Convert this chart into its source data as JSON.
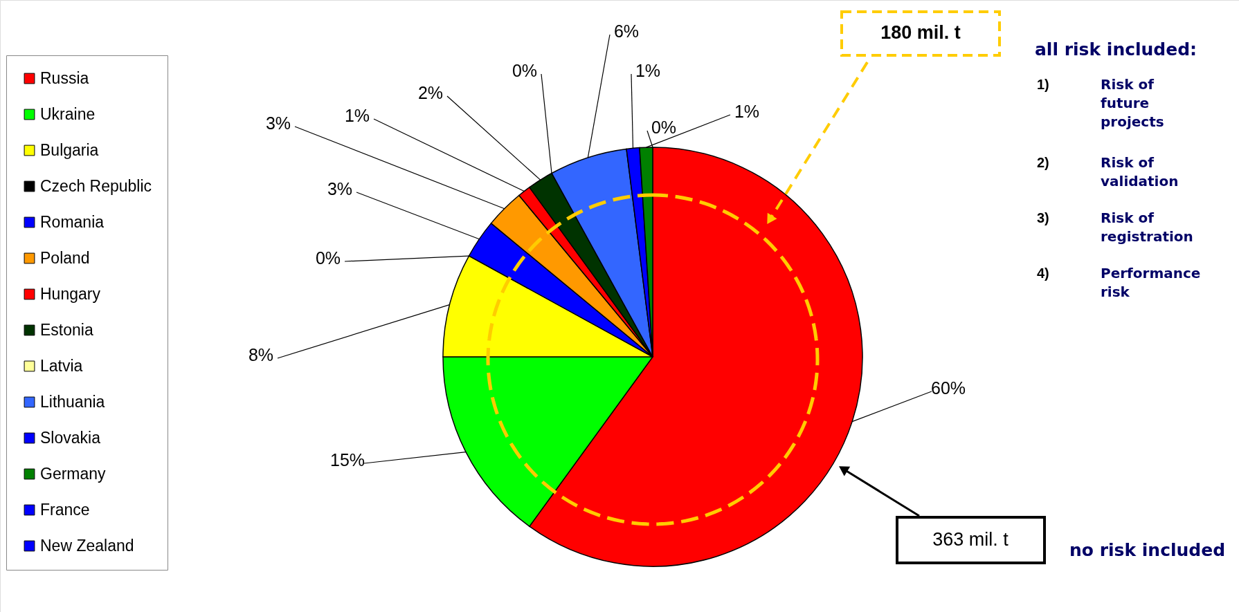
{
  "chart_data": {
    "type": "pie",
    "categories": [
      "Russia",
      "Ukraine",
      "Bulgaria",
      "Czech Republic",
      "Romania",
      "Poland",
      "Hungary",
      "Estonia",
      "Latvia",
      "Lithuania",
      "Slovakia",
      "Germany",
      "France",
      "New Zealand"
    ],
    "values": [
      60,
      15,
      8,
      0,
      3,
      3,
      1,
      2,
      0,
      6,
      1,
      1,
      0,
      0
    ],
    "value_labels": [
      "60%",
      "15%",
      "8%",
      "0%",
      "3%",
      "3%",
      "1%",
      "2%",
      "0%",
      "6%",
      "1%",
      "1%",
      "0%",
      null
    ],
    "colors": [
      "#ff0000",
      "#00ff00",
      "#ffff00",
      "#000000",
      "#0000ff",
      "#ff9900",
      "#ff0000",
      "#003300",
      "#ffff99",
      "#3366ff",
      "#0000ff",
      "#008000",
      "#0000ff",
      "#0000ff"
    ],
    "legend": "left",
    "annotations": [
      "180 mil. t",
      "363 mil. t",
      "all risk included:",
      "1)",
      "Risk of future projects",
      "2)",
      "Risk of validation",
      "3)",
      "Risk of registration",
      "4)",
      "Performance risk",
      "no risk included"
    ]
  }
}
